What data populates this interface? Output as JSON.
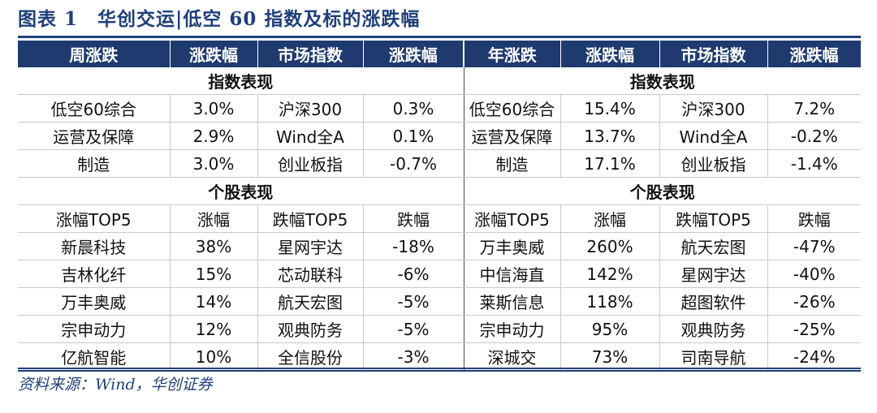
{
  "title": "图表 1　华创交运|低空 60 指数及标的涨跌幅",
  "headers": [
    "周涨跌",
    "涨跌幅",
    "市场指数",
    "涨跌幅",
    "年涨跌",
    "涨跌幅",
    "市场指数",
    "涨跌幅"
  ],
  "section_index": "指数表现",
  "section_stock": "个股表现",
  "index_rows": [
    [
      "低空60综合",
      "3.0%",
      "沪深300",
      "0.3%",
      "低空60综合",
      "15.4%",
      "沪深300",
      "7.2%"
    ],
    [
      "运营及保障",
      "2.9%",
      "Wind全A",
      "0.1%",
      "运营及保障",
      "13.7%",
      "Wind全A",
      "-0.2%"
    ],
    [
      "制造",
      "3.0%",
      "创业板指",
      "-0.7%",
      "制造",
      "17.1%",
      "创业板指",
      "-1.4%"
    ]
  ],
  "stock_header": [
    "涨幅TOP5",
    "涨幅",
    "跌幅TOP5",
    "跌幅",
    "涨幅TOP5",
    "涨幅",
    "跌幅TOP5",
    "跌幅"
  ],
  "stock_rows": [
    [
      "新晨科技",
      "38%",
      "星网宇达",
      "-18%",
      "万丰奥威",
      "260%",
      "航天宏图",
      "-47%"
    ],
    [
      "吉林化纤",
      "15%",
      "芯动联科",
      "-6%",
      "中信海直",
      "142%",
      "星网宇达",
      "-40%"
    ],
    [
      "万丰奥威",
      "14%",
      "航天宏图",
      "-5%",
      "莱斯信息",
      "118%",
      "超图软件",
      "-26%"
    ],
    [
      "宗申动力",
      "12%",
      "观典防务",
      "-5%",
      "宗申动力",
      "95%",
      "观典防务",
      "-25%"
    ],
    [
      "亿航智能",
      "10%",
      "全信股份",
      "-3%",
      "深城交",
      "73%",
      "司南导航",
      "-24%"
    ]
  ],
  "source": "资料来源：Wind，华创证券"
}
